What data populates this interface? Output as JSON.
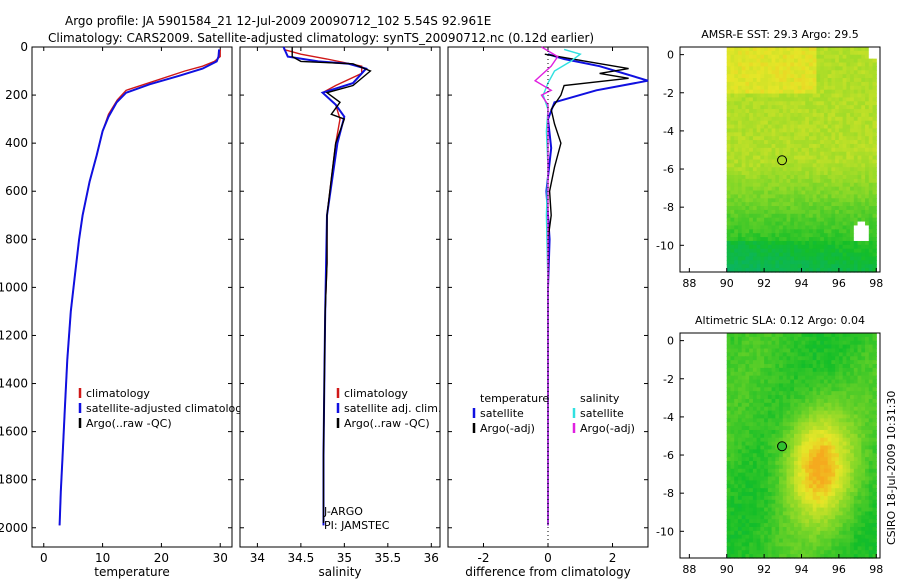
{
  "header": {
    "line1": "Argo profile: JA 5901584_21 12-Jul-2009 20090712_102 5.54S 92.961E",
    "line2": "Climatology: CARS2009. Satellite-adjusted climatology: synTS_20090712.nc (0.12d earlier)"
  },
  "credit": "CSIRO 18-Jul-2009 10:31:30",
  "colors": {
    "climatology": "#d01818",
    "satellite": "#1010e0",
    "argo": "#000000",
    "salinity_sat": "#30e0e0",
    "salinity_argo": "#e020e0"
  },
  "chart_data": [
    {
      "type": "line",
      "id": "temperature",
      "xlabel": "temperature",
      "xlim": [
        -2,
        32
      ],
      "ylim": [
        2080,
        0
      ],
      "xticks": [
        0,
        10,
        20,
        30
      ],
      "yticks": [
        0,
        200,
        400,
        600,
        800,
        1000,
        1200,
        1400,
        1600,
        1800,
        2000
      ],
      "legend": [
        "climatology",
        "satellite-adjusted climatolog",
        "Argo(..raw -QC)"
      ],
      "legend_position": "center-right",
      "series": [
        {
          "name": "climatology",
          "color": "#d01818",
          "points": [
            [
              30,
              10
            ],
            [
              30,
              40
            ],
            [
              29,
              60
            ],
            [
              27,
              80
            ],
            [
              24,
              100
            ],
            [
              19,
              140
            ],
            [
              14,
              180
            ],
            [
              12.5,
              220
            ],
            [
              11,
              280
            ],
            [
              10,
              350
            ],
            [
              9,
              450
            ],
            [
              7.8,
              560
            ],
            [
              6.6,
              700
            ],
            [
              6,
              800
            ],
            [
              5.3,
              950
            ],
            [
              4.6,
              1100
            ],
            [
              4,
              1300
            ],
            [
              3.6,
              1500
            ],
            [
              3.2,
              1700
            ],
            [
              2.9,
              1850
            ],
            [
              2.7,
              1990
            ]
          ]
        },
        {
          "name": "satellite-adjusted climatolog",
          "color": "#1010e0",
          "points": [
            [
              29.8,
              10
            ],
            [
              29.7,
              40
            ],
            [
              29.4,
              60
            ],
            [
              27,
              90
            ],
            [
              23,
              120
            ],
            [
              18,
              155
            ],
            [
              14,
              190
            ],
            [
              12.4,
              230
            ],
            [
              11,
              290
            ],
            [
              10,
              350
            ],
            [
              9,
              450
            ],
            [
              7.8,
              560
            ],
            [
              6.6,
              700
            ],
            [
              6,
              800
            ],
            [
              5.3,
              950
            ],
            [
              4.6,
              1100
            ],
            [
              4,
              1300
            ],
            [
              3.6,
              1500
            ],
            [
              3.2,
              1700
            ],
            [
              2.9,
              1850
            ],
            [
              2.7,
              1990
            ]
          ]
        },
        {
          "name": "Argo(..raw -QC)",
          "color": "#000000",
          "points": []
        }
      ]
    },
    {
      "type": "line",
      "id": "salinity",
      "xlabel": "salinity",
      "xlim": [
        33.8,
        36.1
      ],
      "ylim": [
        2080,
        0
      ],
      "xticks": [
        34,
        34.5,
        35,
        35.5,
        36
      ],
      "legend": [
        "climatology",
        "satellite adj. clim.",
        "Argo(..raw -QC)"
      ],
      "legend_position": "center-right",
      "annotations": [
        "J-ARGO",
        "PI: JAMSTEC"
      ],
      "series": [
        {
          "name": "climatology",
          "color": "#d01818",
          "points": [
            [
              34.3,
              10
            ],
            [
              34.5,
              30
            ],
            [
              34.8,
              50
            ],
            [
              35.2,
              80
            ],
            [
              35.2,
              110
            ],
            [
              34.9,
              160
            ],
            [
              34.75,
              190
            ],
            [
              34.9,
              240
            ],
            [
              34.95,
              300
            ],
            [
              34.9,
              400
            ],
            [
              34.85,
              550
            ],
            [
              34.8,
              700
            ],
            [
              34.8,
              900
            ],
            [
              34.78,
              1100
            ],
            [
              34.77,
              1400
            ],
            [
              34.76,
              1700
            ],
            [
              34.76,
              1990
            ]
          ]
        },
        {
          "name": "satellite adj. clim.",
          "color": "#1010e0",
          "points": [
            [
              34.3,
              0
            ],
            [
              34.35,
              40
            ],
            [
              34.7,
              60
            ],
            [
              35.05,
              70
            ],
            [
              35.25,
              90
            ],
            [
              35.1,
              150
            ],
            [
              34.75,
              190
            ],
            [
              34.9,
              240
            ],
            [
              35,
              290
            ],
            [
              34.92,
              400
            ],
            [
              34.86,
              550
            ],
            [
              34.8,
              700
            ],
            [
              34.79,
              900
            ],
            [
              34.78,
              1100
            ],
            [
              34.77,
              1400
            ],
            [
              34.76,
              1700
            ],
            [
              34.76,
              1990
            ]
          ]
        },
        {
          "name": "Argo(..raw -QC)",
          "color": "#000000",
          "points": [
            [
              34.4,
              0
            ],
            [
              34.4,
              40
            ],
            [
              34.5,
              60
            ],
            [
              35.1,
              70
            ],
            [
              35.3,
              100
            ],
            [
              35.1,
              160
            ],
            [
              34.8,
              190
            ],
            [
              34.95,
              230
            ],
            [
              34.85,
              280
            ],
            [
              35,
              300
            ],
            [
              34.9,
              400
            ],
            [
              34.85,
              550
            ],
            [
              34.8,
              700
            ],
            [
              34.8,
              900
            ],
            [
              34.78,
              1100
            ],
            [
              34.77,
              1400
            ],
            [
              34.76,
              1700
            ],
            [
              34.76,
              1980
            ]
          ]
        }
      ]
    },
    {
      "type": "line",
      "id": "difference",
      "xlabel": "difference from climatology",
      "xlim": [
        -3.1,
        3.1
      ],
      "ylim": [
        2080,
        0
      ],
      "xticks": [
        -2,
        0,
        2
      ],
      "legend_groups": [
        {
          "title": "temperature",
          "entries": [
            "satellite",
            "Argo(-adj)"
          ]
        },
        {
          "title": "salinity",
          "entries": [
            "satellite",
            "Argo(-adj)"
          ]
        }
      ],
      "legend_position": "center",
      "series": [
        {
          "name": "temperature satellite",
          "color": "#1010e0",
          "points": [
            [
              0,
              30
            ],
            [
              0.5,
              50
            ],
            [
              1.6,
              80
            ],
            [
              3.1,
              140
            ],
            [
              1.5,
              180
            ],
            [
              0.2,
              230
            ],
            [
              0,
              300
            ],
            [
              0.1,
              420
            ],
            [
              -0.05,
              600
            ],
            [
              0.05,
              800
            ],
            [
              0,
              1000
            ],
            [
              0,
              1400
            ],
            [
              0,
              1990
            ]
          ]
        },
        {
          "name": "temperature Argo(-adj)",
          "color": "#000000",
          "points": [
            [
              -0.1,
              30
            ],
            [
              1.2,
              60
            ],
            [
              2.5,
              90
            ],
            [
              1.6,
              110
            ],
            [
              2.5,
              130
            ],
            [
              0.5,
              160
            ],
            [
              0.4,
              200
            ],
            [
              0.1,
              260
            ],
            [
              0.2,
              320
            ],
            [
              0.4,
              400
            ],
            [
              0.2,
              500
            ],
            [
              0.05,
              600
            ],
            [
              0.1,
              700
            ],
            [
              0,
              800
            ],
            [
              0,
              1000
            ],
            [
              0,
              1400
            ],
            [
              0,
              1990
            ]
          ]
        },
        {
          "name": "salinity satellite",
          "color": "#30e0e0",
          "points": [
            [
              0.5,
              10
            ],
            [
              1,
              30
            ],
            [
              0.7,
              60
            ],
            [
              0.2,
              100
            ],
            [
              0,
              150
            ],
            [
              -0.15,
              200
            ],
            [
              0,
              260
            ],
            [
              -0.05,
              350
            ],
            [
              0,
              500
            ],
            [
              -0.05,
              700
            ],
            [
              0,
              1000
            ],
            [
              0,
              1500
            ],
            [
              0,
              1990
            ]
          ]
        },
        {
          "name": "salinity Argo(-adj)",
          "color": "#e020e0",
          "points": [
            [
              -0.2,
              0
            ],
            [
              0.3,
              40
            ],
            [
              0.1,
              80
            ],
            [
              -0.4,
              140
            ],
            [
              0.1,
              180
            ],
            [
              -0.2,
              200
            ],
            [
              0,
              240
            ],
            [
              0,
              1990
            ]
          ]
        }
      ]
    },
    {
      "type": "heatmap",
      "id": "sst",
      "title": "AMSR-E SST: 29.3 Argo: 29.5",
      "xlim": [
        87.5,
        98.2
      ],
      "ylim": [
        -11.4,
        0.4
      ],
      "xticks": [
        88,
        90,
        92,
        94,
        96,
        98
      ],
      "yticks": [
        0,
        -2,
        -4,
        -6,
        -8,
        -10
      ],
      "data_xlim": [
        90,
        98
      ],
      "marker": {
        "x": 92.96,
        "y": -5.54
      }
    },
    {
      "type": "heatmap",
      "id": "sla",
      "title": "Altimetric SLA: 0.12 Argo: 0.04",
      "xlim": [
        87.5,
        98.2
      ],
      "ylim": [
        -11.4,
        0.4
      ],
      "xticks": [
        88,
        90,
        92,
        94,
        96,
        98
      ],
      "yticks": [
        0,
        -2,
        -4,
        -6,
        -8,
        -10
      ],
      "data_xlim": [
        90,
        98
      ],
      "marker": {
        "x": 92.96,
        "y": -5.54
      }
    }
  ]
}
